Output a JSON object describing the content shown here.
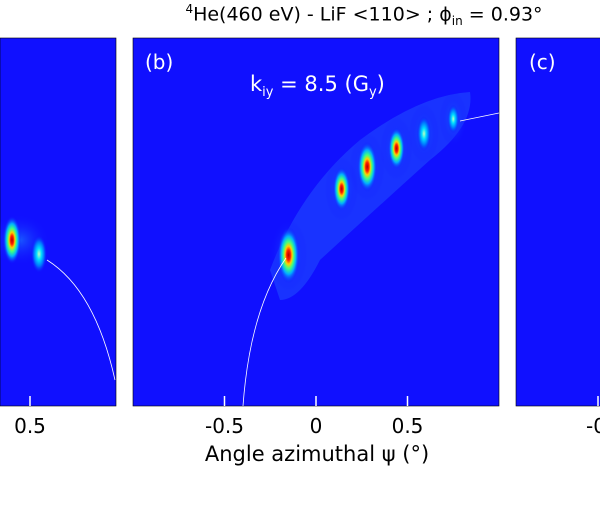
{
  "figure": {
    "title_pre": "4",
    "title_main": "He(460 eV) - LiF <110> ; ",
    "title_phi": "ϕ",
    "title_sub": "in",
    "title_post": " = 0.93°",
    "xlabel": "Angle azimuthal ψ (°)",
    "background_color": "#1010ff"
  },
  "panels": [
    {
      "label": "",
      "visible_tick_labels": [
        "0.5"
      ]
    },
    {
      "label": "(b)",
      "annotation_pre": "k",
      "annotation_sub": "iy",
      "annotation_post": " = 8.5 (G",
      "annotation_sub2": "y",
      "annotation_end": ")"
    },
    {
      "label": "(c)",
      "visible_tick_labels": [
        "-0"
      ]
    }
  ],
  "chart_data": {
    "type": "heatmap",
    "title": "4He(460 eV) - LiF <110> ; ϕin = 0.93°",
    "xlabel": "Angle azimuthal ψ (°)",
    "ylabel": "",
    "panel": "(b)",
    "xlim": [
      -1.0,
      1.0
    ],
    "x_ticks": [
      -0.5,
      0,
      0.5
    ],
    "x_tick_labels": [
      "-0.5",
      "0",
      "0.5"
    ],
    "annotation": "kiy = 8.5 (Gy)",
    "grid": false,
    "colormap": "jet",
    "peaks": [
      {
        "x": -0.15,
        "y_rel": 0.41,
        "intensity": 1.0
      },
      {
        "x": 0.14,
        "y_rel": 0.59,
        "intensity": 0.6
      },
      {
        "x": 0.28,
        "y_rel": 0.65,
        "intensity": 0.8
      },
      {
        "x": 0.44,
        "y_rel": 0.7,
        "intensity": 0.55
      },
      {
        "x": 0.59,
        "y_rel": 0.74,
        "intensity": 0.35
      },
      {
        "x": 0.75,
        "y_rel": 0.78,
        "intensity": 0.15
      }
    ]
  }
}
